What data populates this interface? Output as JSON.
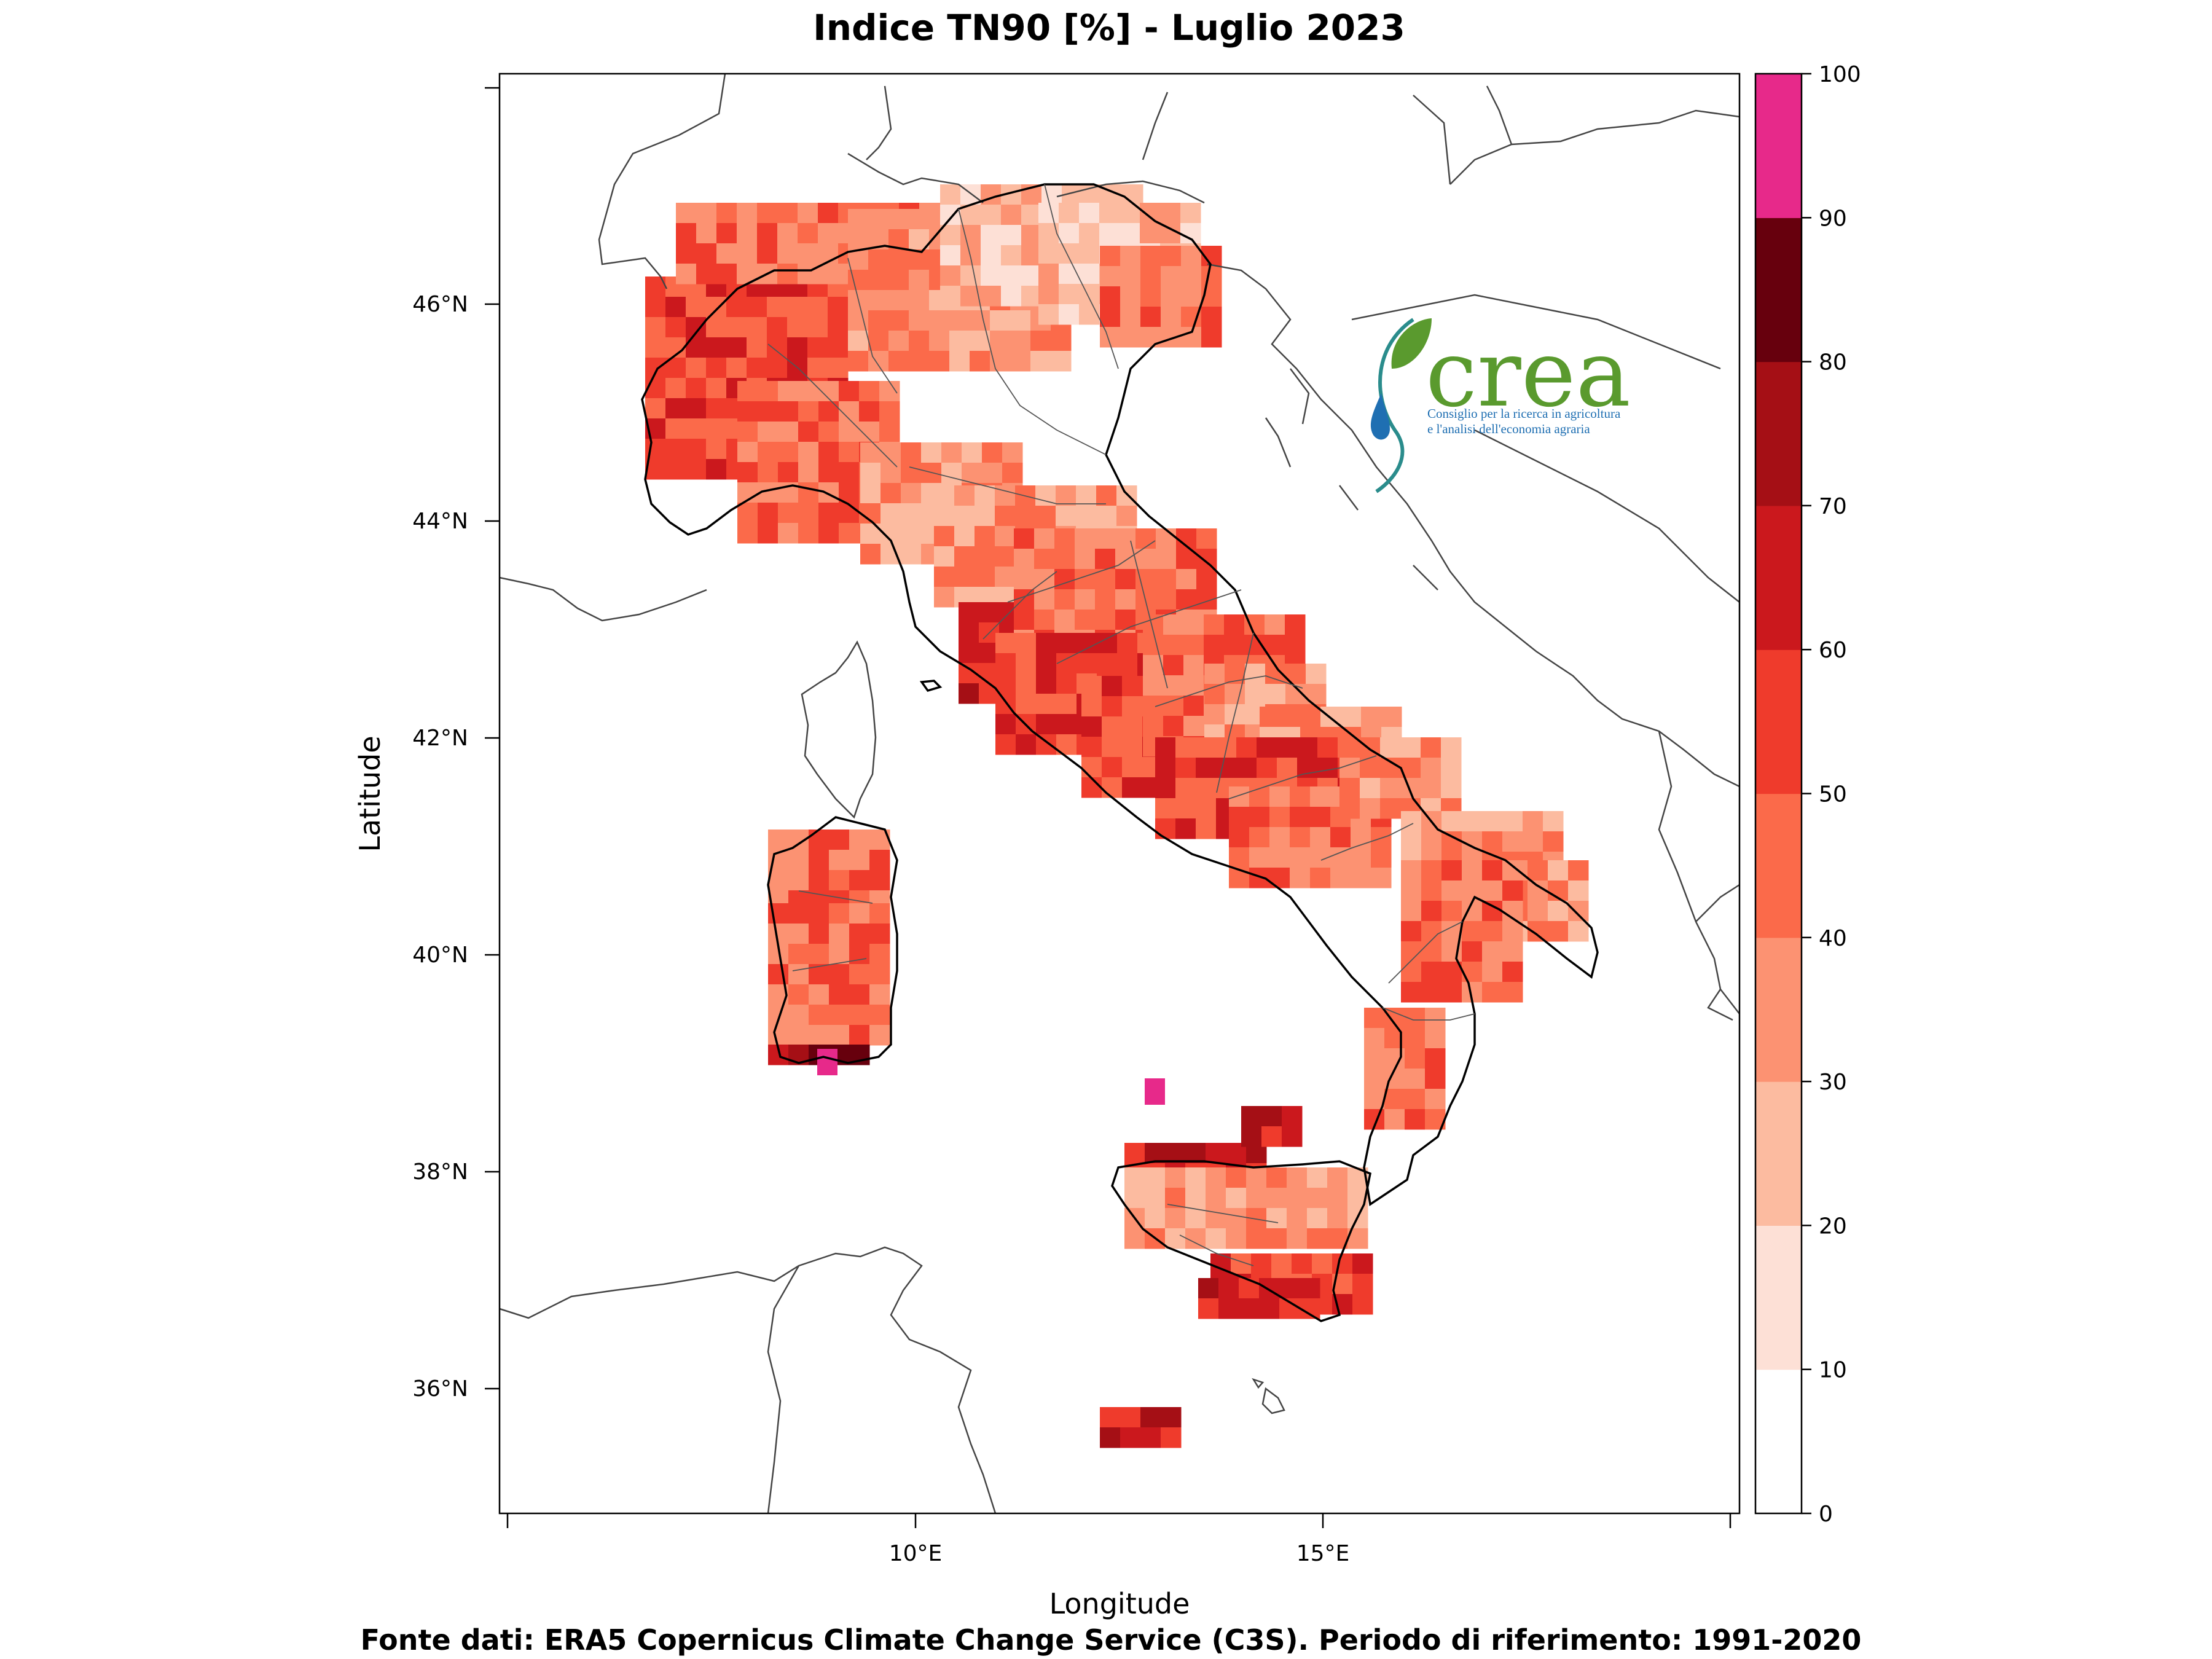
{
  "title": "Indice TN90 [%] - Luglio 2023",
  "xlabel": "Longitude",
  "ylabel": "Latitude",
  "source": "Fonte dati: ERA5 Copernicus Climate Change Service (C3S). Periodo di riferimento: 1991-2020",
  "logo": {
    "name": "crea",
    "line1": "Consiglio per la ricerca in agricoltura",
    "line2": "e l'analisi dell'economia agraria",
    "colors": {
      "green": "#5a9a2e",
      "blue": "#1f6fb2",
      "teal": "#2a8c8c"
    }
  },
  "map": {
    "lon_range": [
      4.8,
      19.9
    ],
    "lat_range": [
      34.9,
      48.2
    ],
    "x_ticks": [
      "10°E",
      "15°E"
    ],
    "y_ticks": [
      "36°N",
      "38°N",
      "40°N",
      "42°N",
      "44°N",
      "46°N"
    ],
    "colors": {
      "coast": "#444444",
      "border": "#000000",
      "regions": "#555555"
    }
  },
  "colorbar": {
    "labels": [
      "0",
      "10",
      "20",
      "30",
      "40",
      "50",
      "60",
      "70",
      "80",
      "90",
      "100"
    ],
    "colors": [
      "#ffffff",
      "#fde0d6",
      "#fcbba0",
      "#fc9272",
      "#fb6a4a",
      "#ef3b2c",
      "#cb181d",
      "#a50f15",
      "#67000d",
      "#e7298a"
    ]
  }
}
